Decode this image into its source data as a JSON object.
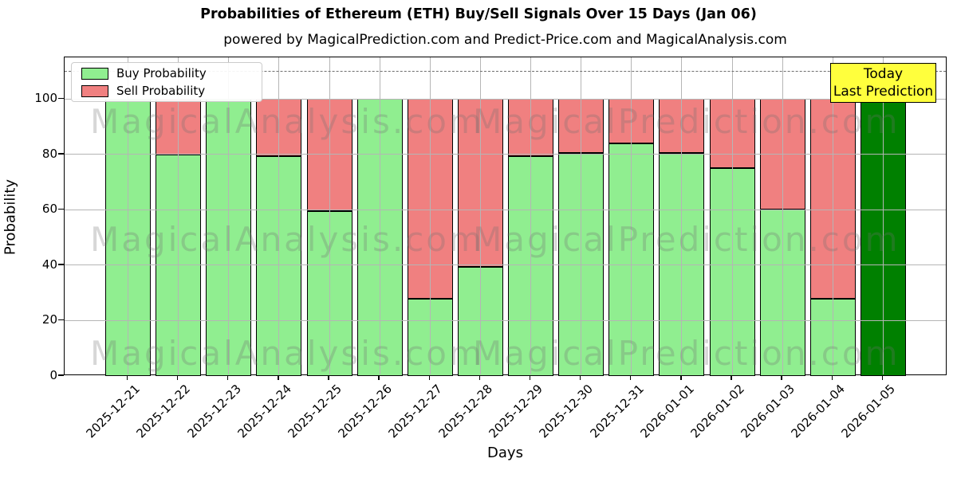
{
  "title": "Probabilities of Ethereum (ETH) Buy/Sell Signals Over 15 Days (Jan 06)",
  "subtitle": "powered by MagicalPrediction.com and Predict-Price.com and MagicalAnalysis.com",
  "legend": {
    "buy_label": "Buy Probability",
    "sell_label": "Sell Probability"
  },
  "annotation": {
    "line1": "Today",
    "line2": "Last Prediction"
  },
  "axes": {
    "xlabel": "Days",
    "ylabel": "Probability",
    "yticks": [
      0,
      20,
      40,
      60,
      80,
      100
    ]
  },
  "watermarks": {
    "left": "MagicalAnalysis.com",
    "right": "MagicalPrediction.com"
  },
  "colors": {
    "buy": "#90ee90",
    "sell": "#f08080",
    "today": "#008000",
    "annotation_bg": "#ffff3d",
    "grid": "#b5b5b5",
    "dashed_line": "#6e6e6e",
    "bar_edge": "#000000"
  },
  "chart_data": {
    "type": "bar",
    "stacked": true,
    "title": "Probabilities of Ethereum (ETH) Buy/Sell Signals Over 15 Days (Jan 06)",
    "xlabel": "Days",
    "ylabel": "Probability",
    "ylim": [
      0,
      115.1
    ],
    "grid": true,
    "legend_position": "upper left",
    "dashed_line_y": 110,
    "categories": [
      "2025-12-21",
      "2025-12-22",
      "2025-12-23",
      "2025-12-24",
      "2025-12-25",
      "2025-12-26",
      "2025-12-27",
      "2025-12-28",
      "2025-12-29",
      "2025-12-30",
      "2025-12-31",
      "2026-01-01",
      "2026-01-02",
      "2026-01-03",
      "2026-01-04",
      "2026-01-05"
    ],
    "series": [
      {
        "name": "Buy Probability",
        "color": "#90ee90",
        "values": [
          100,
          80,
          100,
          79.5,
          59.5,
          100,
          28,
          39.5,
          79.5,
          80.5,
          84,
          80.5,
          75,
          60,
          28,
          100
        ]
      },
      {
        "name": "Sell Probability",
        "color": "#f08080",
        "values": [
          0,
          20,
          0,
          20.5,
          40.5,
          0,
          72,
          60.5,
          20.5,
          19.5,
          16,
          19.5,
          25,
          40,
          72,
          0
        ]
      }
    ],
    "today_bar": {
      "category": "2026-01-05",
      "value": 100,
      "color": "#008000",
      "label": "Today\nLast Prediction"
    }
  }
}
